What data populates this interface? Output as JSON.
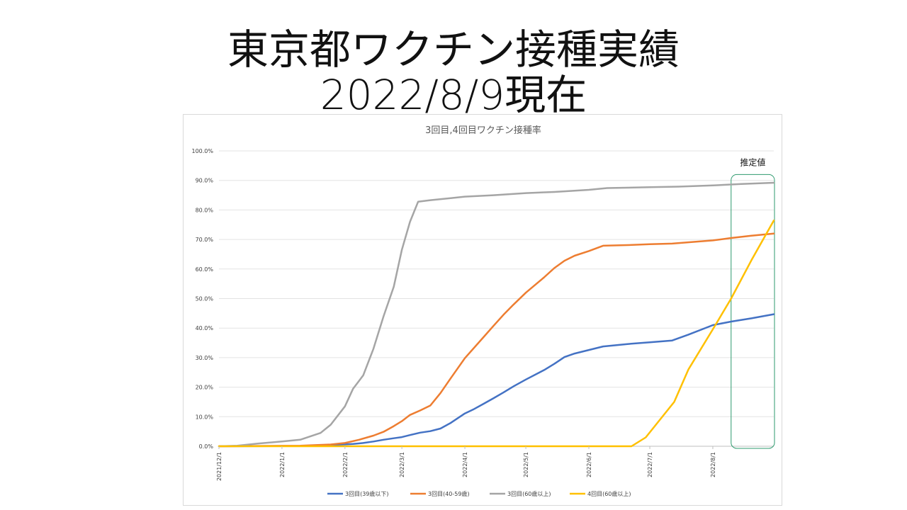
{
  "slide": {
    "title_line1": "東京都ワクチン接種実績",
    "title_line2": "2022/8/9現在"
  },
  "chart_data": {
    "type": "line",
    "title": "3回目,4回目ワクチン接種率",
    "xlabel": "",
    "ylabel": "",
    "x_start": "2021-12-01",
    "x_end": "2022-08-31",
    "ylim": [
      0,
      1.0
    ],
    "y_ticks": [
      0,
      0.1,
      0.2,
      0.3,
      0.4,
      0.5,
      0.6,
      0.7,
      0.8,
      0.9,
      1.0
    ],
    "y_tick_labels": [
      "0.0%",
      "10.0%",
      "20.0%",
      "30.0%",
      "40.0%",
      "50.0%",
      "60.0%",
      "70.0%",
      "80.0%",
      "90.0%",
      "100.0%"
    ],
    "x_ticks": [
      "2021-12-01",
      "2022-01-01",
      "2022-02-01",
      "2022-03-01",
      "2022-04-01",
      "2022-05-01",
      "2022-06-01",
      "2022-07-01",
      "2022-08-01"
    ],
    "x_tick_labels": [
      "2021/12/1",
      "2022/1/1",
      "2022/2/1",
      "2022/3/1",
      "2022/4/1",
      "2022/5/1",
      "2022/6/1",
      "2022/7/1",
      "2022/8/1"
    ],
    "grid": true,
    "legend_position": "bottom",
    "annotation": {
      "label": "推定値",
      "x_from": "2022-08-10",
      "x_to": "2022-08-31",
      "y_from": 0,
      "y_to": 0.92,
      "color": "#2e9a6e"
    },
    "series": [
      {
        "name": "3回目(39歳以下)",
        "color": "#4472c4",
        "points": [
          [
            "2021-12-01",
            0.0
          ],
          [
            "2022-01-10",
            0.001
          ],
          [
            "2022-01-25",
            0.004
          ],
          [
            "2022-02-05",
            0.008
          ],
          [
            "2022-02-10",
            0.011
          ],
          [
            "2022-02-15",
            0.016
          ],
          [
            "2022-02-20",
            0.022
          ],
          [
            "2022-02-25",
            0.027
          ],
          [
            "2022-03-01",
            0.031
          ],
          [
            "2022-03-05",
            0.038
          ],
          [
            "2022-03-10",
            0.046
          ],
          [
            "2022-03-15",
            0.051
          ],
          [
            "2022-03-20",
            0.06
          ],
          [
            "2022-03-25",
            0.079
          ],
          [
            "2022-04-01",
            0.111
          ],
          [
            "2022-04-05",
            0.124
          ],
          [
            "2022-04-10",
            0.143
          ],
          [
            "2022-04-15",
            0.162
          ],
          [
            "2022-04-20",
            0.182
          ],
          [
            "2022-04-25",
            0.203
          ],
          [
            "2022-05-01",
            0.226
          ],
          [
            "2022-05-10",
            0.258
          ],
          [
            "2022-05-15",
            0.279
          ],
          [
            "2022-05-20",
            0.302
          ],
          [
            "2022-05-25",
            0.314
          ],
          [
            "2022-06-01",
            0.326
          ],
          [
            "2022-06-08",
            0.338
          ],
          [
            "2022-06-20",
            0.346
          ],
          [
            "2022-07-01",
            0.352
          ],
          [
            "2022-07-12",
            0.358
          ],
          [
            "2022-07-20",
            0.378
          ],
          [
            "2022-08-01",
            0.41
          ],
          [
            "2022-08-10",
            0.422
          ],
          [
            "2022-08-20",
            0.433
          ],
          [
            "2022-08-31",
            0.447
          ]
        ]
      },
      {
        "name": "3回目(40-59歳)",
        "color": "#ed7d31",
        "points": [
          [
            "2021-12-01",
            0.0
          ],
          [
            "2022-01-10",
            0.002
          ],
          [
            "2022-01-25",
            0.006
          ],
          [
            "2022-02-01",
            0.011
          ],
          [
            "2022-02-08",
            0.022
          ],
          [
            "2022-02-15",
            0.036
          ],
          [
            "2022-02-20",
            0.049
          ],
          [
            "2022-02-25",
            0.068
          ],
          [
            "2022-03-01",
            0.085
          ],
          [
            "2022-03-05",
            0.106
          ],
          [
            "2022-03-10",
            0.121
          ],
          [
            "2022-03-15",
            0.138
          ],
          [
            "2022-03-20",
            0.18
          ],
          [
            "2022-03-25",
            0.23
          ],
          [
            "2022-04-01",
            0.298
          ],
          [
            "2022-04-10",
            0.368
          ],
          [
            "2022-04-15",
            0.407
          ],
          [
            "2022-04-20",
            0.445
          ],
          [
            "2022-04-25",
            0.48
          ],
          [
            "2022-05-01",
            0.52
          ],
          [
            "2022-05-10",
            0.572
          ],
          [
            "2022-05-15",
            0.603
          ],
          [
            "2022-05-20",
            0.628
          ],
          [
            "2022-05-25",
            0.645
          ],
          [
            "2022-06-01",
            0.661
          ],
          [
            "2022-06-08",
            0.679
          ],
          [
            "2022-06-20",
            0.681
          ],
          [
            "2022-07-01",
            0.684
          ],
          [
            "2022-07-12",
            0.686
          ],
          [
            "2022-08-01",
            0.697
          ],
          [
            "2022-08-10",
            0.705
          ],
          [
            "2022-08-20",
            0.713
          ],
          [
            "2022-08-31",
            0.72
          ]
        ]
      },
      {
        "name": "3回目(60歳以上)",
        "color": "#a5a5a5",
        "points": [
          [
            "2021-12-01",
            0.0
          ],
          [
            "2021-12-10",
            0.002
          ],
          [
            "2021-12-20",
            0.009
          ],
          [
            "2022-01-01",
            0.016
          ],
          [
            "2022-01-10",
            0.022
          ],
          [
            "2022-01-20",
            0.045
          ],
          [
            "2022-01-25",
            0.073
          ],
          [
            "2022-02-01",
            0.135
          ],
          [
            "2022-02-05",
            0.195
          ],
          [
            "2022-02-10",
            0.24
          ],
          [
            "2022-02-15",
            0.33
          ],
          [
            "2022-02-20",
            0.44
          ],
          [
            "2022-02-25",
            0.54
          ],
          [
            "2022-03-01",
            0.665
          ],
          [
            "2022-03-05",
            0.76
          ],
          [
            "2022-03-09",
            0.828
          ],
          [
            "2022-03-15",
            0.833
          ],
          [
            "2022-03-25",
            0.84
          ],
          [
            "2022-04-01",
            0.845
          ],
          [
            "2022-04-15",
            0.85
          ],
          [
            "2022-05-01",
            0.857
          ],
          [
            "2022-05-15",
            0.861
          ],
          [
            "2022-06-01",
            0.868
          ],
          [
            "2022-06-10",
            0.874
          ],
          [
            "2022-07-01",
            0.877
          ],
          [
            "2022-07-15",
            0.879
          ],
          [
            "2022-08-01",
            0.883
          ],
          [
            "2022-08-15",
            0.888
          ],
          [
            "2022-08-31",
            0.892
          ]
        ]
      },
      {
        "name": "4回目(60歳以上)",
        "color": "#ffc000",
        "points": [
          [
            "2021-12-01",
            0.0
          ],
          [
            "2022-06-22",
            0.0
          ],
          [
            "2022-06-29",
            0.03
          ],
          [
            "2022-07-13",
            0.15
          ],
          [
            "2022-07-20",
            0.26
          ],
          [
            "2022-08-01",
            0.396
          ],
          [
            "2022-08-10",
            0.5
          ],
          [
            "2022-08-20",
            0.63
          ],
          [
            "2022-08-31",
            0.764
          ]
        ]
      }
    ]
  }
}
